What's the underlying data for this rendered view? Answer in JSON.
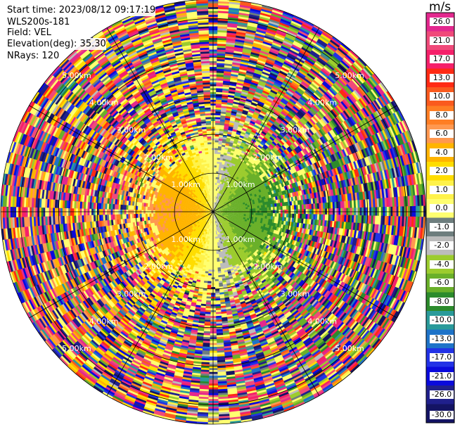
{
  "header": {
    "start_time": "Start time: 2023/08/12 09:17:19",
    "instrument": "WLS200s-181",
    "field": "Field: VEL",
    "elevation": "Elevation(deg): 35.30",
    "nrays": "NRays: 120"
  },
  "chart_data": {
    "type": "heatmap",
    "projection": "polar-ppi",
    "n_rays": 120,
    "range_max_km": 5.5,
    "range_ring_labels": [
      "1.00km",
      "2.00km",
      "3.00km",
      "4.00km",
      "5.00km"
    ],
    "range_rings_km": [
      1,
      2,
      3,
      4,
      5
    ],
    "spokes_deg": [
      0,
      30,
      60,
      90,
      120,
      150,
      180,
      210,
      240,
      270,
      300,
      330
    ],
    "colorbar": {
      "unit": "m/s",
      "min": -30,
      "max": 30,
      "tick_labels": [
        "26.0",
        "21.0",
        "17.0",
        "13.0",
        "10.0",
        "8.0",
        "6.0",
        "4.0",
        "2.0",
        "1.0",
        "0.0",
        "-1.0",
        "-2.0",
        "-4.0",
        "-6.0",
        "-8.0",
        "-10.0",
        "-13.0",
        "-17.0",
        "-21.0",
        "-26.0",
        "-30.0"
      ],
      "colors": [
        "#e3288e",
        "#f04a7a",
        "#f5206a",
        "#ff2a14",
        "#fa5a1e",
        "#ff7e24",
        "#ff9850",
        "#ffb400",
        "#ffdd00",
        "#fff24a",
        "#ffff70",
        "#6e7e7e",
        "#bcbcbc",
        "#9ccc2e",
        "#6ab02a",
        "#2c8b2c",
        "#2a9a9a",
        "#1e73c8",
        "#2232e6",
        "#0a0adc",
        "#20208c",
        "#141464"
      ]
    },
    "pattern": {
      "inner_clean_range_km": 1.5,
      "positive_lobe_azimuth_deg": 270,
      "negative_lobe_azimuth_deg": 90,
      "core_speed_ms": 6
    }
  }
}
